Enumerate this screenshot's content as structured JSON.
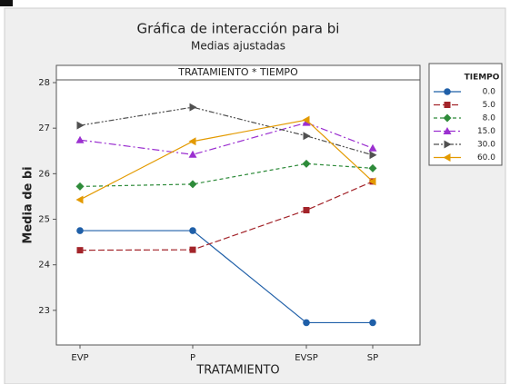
{
  "chart_data": {
    "type": "line",
    "title": "Gráfica de interacción para bi",
    "subtitle": "Medias ajustadas",
    "panel_title": "TRATAMIENTO * TIEMPO",
    "x_label": "TRATAMIENTO",
    "y_label": "Media de bi",
    "legend_title": "TIEMPO",
    "categories": [
      "EVP",
      "P",
      "EVSP",
      "SP"
    ],
    "series": [
      {
        "name": "0.0",
        "color": "#1f5fa8",
        "values": [
          24.75,
          24.75,
          22.73,
          22.73
        ]
      },
      {
        "name": "5.0",
        "color": "#a3242a",
        "values": [
          24.32,
          24.33,
          25.2,
          25.83
        ]
      },
      {
        "name": "8.0",
        "color": "#2e8b3a",
        "values": [
          25.72,
          25.77,
          26.22,
          26.12
        ]
      },
      {
        "name": "15.0",
        "color": "#9b30d0",
        "values": [
          26.74,
          26.42,
          27.12,
          26.56
        ]
      },
      {
        "name": "30.0",
        "color": "#505050",
        "values": [
          27.06,
          27.46,
          26.83,
          26.41
        ]
      },
      {
        "name": "60.0",
        "color": "#e39a00",
        "values": [
          25.43,
          26.71,
          27.18,
          25.83
        ]
      }
    ],
    "ylim": [
      22.24,
      28.06
    ],
    "yticks": [
      23,
      24,
      25,
      26,
      27,
      28
    ],
    "legend": "right"
  }
}
